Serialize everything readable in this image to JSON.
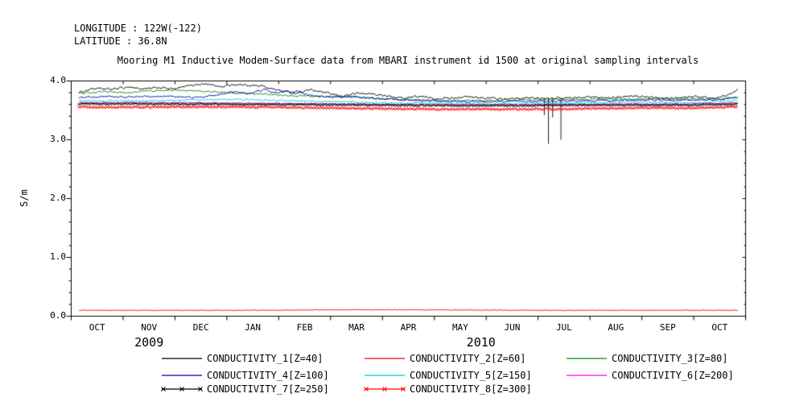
{
  "header": {
    "longitude": "LONGITUDE : 122W(-122)",
    "latitude": "LATITUDE : 36.8N"
  },
  "chart_data": {
    "type": "line",
    "title": "Mooring M1 Inductive Modem-Surface data from MBARI instrument id 1500 at original sampling intervals",
    "ylabel": "S/m",
    "ylim": [
      0.0,
      4.0
    ],
    "y_ticks": [
      0.0,
      1.0,
      2.0,
      3.0,
      4.0
    ],
    "y_minor_step": 0.2,
    "x_months": [
      "OCT",
      "NOV",
      "DEC",
      "JAN",
      "FEB",
      "MAR",
      "APR",
      "MAY",
      "JUN",
      "JUL",
      "AUG",
      "SEP",
      "OCT"
    ],
    "x_range_months": [
      0,
      13
    ],
    "year_labels": [
      {
        "text": "2009",
        "month_pos": 1.5
      },
      {
        "text": "2010",
        "month_pos": 7.9
      }
    ],
    "grid": false,
    "legend_position": "bottom",
    "units": "S/m",
    "series": [
      {
        "name": "CONDUCTIVITY_1",
        "label": "CONDUCTIVITY_1[Z=40]",
        "z": 40,
        "color": "#000000",
        "marker": "none",
        "noise": 0.022,
        "points": [
          [
            0.15,
            3.8
          ],
          [
            0.4,
            3.87
          ],
          [
            0.8,
            3.86
          ],
          [
            1.1,
            3.9
          ],
          [
            1.4,
            3.86
          ],
          [
            1.7,
            3.89
          ],
          [
            2.0,
            3.86
          ],
          [
            2.3,
            3.93
          ],
          [
            2.6,
            3.95
          ],
          [
            2.9,
            3.9
          ],
          [
            3.1,
            3.94
          ],
          [
            3.4,
            3.93
          ],
          [
            3.7,
            3.91
          ],
          [
            4.0,
            3.84
          ],
          [
            4.3,
            3.79
          ],
          [
            4.6,
            3.85
          ],
          [
            4.9,
            3.8
          ],
          [
            5.2,
            3.74
          ],
          [
            5.5,
            3.79
          ],
          [
            5.8,
            3.78
          ],
          [
            6.1,
            3.74
          ],
          [
            6.4,
            3.71
          ],
          [
            6.7,
            3.74
          ],
          [
            7.0,
            3.7
          ],
          [
            7.3,
            3.71
          ],
          [
            7.6,
            3.73
          ],
          [
            8.0,
            3.71
          ],
          [
            8.4,
            3.69
          ],
          [
            8.8,
            3.71
          ],
          [
            9.2,
            3.71
          ],
          [
            9.6,
            3.71
          ],
          [
            10.0,
            3.73
          ],
          [
            10.4,
            3.71
          ],
          [
            10.8,
            3.74
          ],
          [
            11.2,
            3.73
          ],
          [
            11.6,
            3.71
          ],
          [
            12.0,
            3.74
          ],
          [
            12.4,
            3.71
          ],
          [
            12.6,
            3.74
          ],
          [
            12.85,
            3.86
          ]
        ],
        "spikes": [
          [
            9.12,
            3.42
          ],
          [
            9.2,
            2.93
          ],
          [
            9.28,
            3.38
          ],
          [
            9.44,
            3.0
          ]
        ]
      },
      {
        "name": "CONDUCTIVITY_2",
        "label": "CONDUCTIVITY_2[Z=60]",
        "z": 60,
        "color": "#ff0000",
        "marker": "none",
        "noise": 0.006,
        "points": [
          [
            0.15,
            0.1
          ],
          [
            3.0,
            0.1
          ],
          [
            6.0,
            0.11
          ],
          [
            9.0,
            0.1
          ],
          [
            12.85,
            0.1
          ]
        ]
      },
      {
        "name": "CONDUCTIVITY_3",
        "label": "CONDUCTIVITY_3[Z=80]",
        "z": 80,
        "color": "#009000",
        "marker": "none",
        "noise": 0.018,
        "points": [
          [
            0.15,
            3.79
          ],
          [
            0.6,
            3.82
          ],
          [
            1.0,
            3.8
          ],
          [
            1.5,
            3.83
          ],
          [
            2.0,
            3.84
          ],
          [
            2.5,
            3.83
          ],
          [
            3.0,
            3.8
          ],
          [
            3.5,
            3.78
          ],
          [
            4.0,
            3.76
          ],
          [
            4.5,
            3.74
          ],
          [
            5.0,
            3.73
          ],
          [
            5.5,
            3.72
          ],
          [
            6.0,
            3.7
          ],
          [
            6.5,
            3.68
          ],
          [
            7.0,
            3.67
          ],
          [
            7.5,
            3.67
          ],
          [
            8.0,
            3.67
          ],
          [
            8.5,
            3.67
          ],
          [
            9.0,
            3.68
          ],
          [
            9.5,
            3.68
          ],
          [
            10.0,
            3.69
          ],
          [
            10.5,
            3.69
          ],
          [
            11.0,
            3.7
          ],
          [
            11.5,
            3.69
          ],
          [
            12.0,
            3.7
          ],
          [
            12.5,
            3.69
          ],
          [
            12.85,
            3.72
          ]
        ]
      },
      {
        "name": "CONDUCTIVITY_4",
        "label": "CONDUCTIVITY_4[Z=100]",
        "z": 100,
        "color": "#0000cc",
        "marker": "none",
        "noise": 0.02,
        "points": [
          [
            0.15,
            3.72
          ],
          [
            0.6,
            3.73
          ],
          [
            1.2,
            3.73
          ],
          [
            1.8,
            3.74
          ],
          [
            2.4,
            3.72
          ],
          [
            2.8,
            3.76
          ],
          [
            3.1,
            3.82
          ],
          [
            3.4,
            3.78
          ],
          [
            3.7,
            3.85
          ],
          [
            4.0,
            3.8
          ],
          [
            4.3,
            3.83
          ],
          [
            4.6,
            3.76
          ],
          [
            5.0,
            3.72
          ],
          [
            5.4,
            3.74
          ],
          [
            5.8,
            3.71
          ],
          [
            6.2,
            3.69
          ],
          [
            6.6,
            3.67
          ],
          [
            7.0,
            3.66
          ],
          [
            7.5,
            3.65
          ],
          [
            8.0,
            3.65
          ],
          [
            8.5,
            3.65
          ],
          [
            9.0,
            3.65
          ],
          [
            9.5,
            3.66
          ],
          [
            10.0,
            3.66
          ],
          [
            10.5,
            3.67
          ],
          [
            11.0,
            3.68
          ],
          [
            11.5,
            3.67
          ],
          [
            12.0,
            3.68
          ],
          [
            12.5,
            3.68
          ],
          [
            12.85,
            3.73
          ]
        ]
      },
      {
        "name": "CONDUCTIVITY_5",
        "label": "CONDUCTIVITY_5[Z=150]",
        "z": 150,
        "color": "#00cfcf",
        "marker": "none",
        "noise": 0.016,
        "points": [
          [
            0.15,
            3.67
          ],
          [
            1.0,
            3.66
          ],
          [
            2.0,
            3.67
          ],
          [
            3.0,
            3.69
          ],
          [
            4.0,
            3.67
          ],
          [
            5.0,
            3.65
          ],
          [
            6.0,
            3.63
          ],
          [
            7.0,
            3.62
          ],
          [
            8.0,
            3.61
          ],
          [
            9.0,
            3.62
          ],
          [
            10.0,
            3.63
          ],
          [
            11.0,
            3.64
          ],
          [
            12.0,
            3.63
          ],
          [
            12.85,
            3.67
          ]
        ]
      },
      {
        "name": "CONDUCTIVITY_6",
        "label": "CONDUCTIVITY_6[Z=200]",
        "z": 200,
        "color": "#ff00ff",
        "marker": "none",
        "noise": 0.012,
        "points": [
          [
            0.15,
            3.63
          ],
          [
            2.0,
            3.63
          ],
          [
            4.0,
            3.62
          ],
          [
            6.0,
            3.6
          ],
          [
            8.0,
            3.59
          ],
          [
            10.0,
            3.6
          ],
          [
            12.0,
            3.61
          ],
          [
            12.85,
            3.63
          ]
        ]
      },
      {
        "name": "CONDUCTIVITY_7",
        "label": "CONDUCTIVITY_7[Z=250]",
        "z": 250,
        "color": "#000000",
        "marker": "x",
        "noise": 0.01,
        "points": [
          [
            0.15,
            3.61
          ],
          [
            2.0,
            3.61
          ],
          [
            4.0,
            3.6
          ],
          [
            6.0,
            3.59
          ],
          [
            8.0,
            3.58
          ],
          [
            10.0,
            3.59
          ],
          [
            12.0,
            3.59
          ],
          [
            12.85,
            3.61
          ]
        ]
      },
      {
        "name": "CONDUCTIVITY_8",
        "label": "CONDUCTIVITY_8[Z=300]",
        "z": 300,
        "color": "#ff0000",
        "marker": "x",
        "noise": 0.012,
        "points": [
          [
            0.15,
            3.56
          ],
          [
            1.0,
            3.55
          ],
          [
            2.0,
            3.56
          ],
          [
            3.0,
            3.56
          ],
          [
            4.0,
            3.55
          ],
          [
            5.0,
            3.54
          ],
          [
            6.0,
            3.53
          ],
          [
            7.0,
            3.52
          ],
          [
            8.0,
            3.52
          ],
          [
            9.0,
            3.52
          ],
          [
            10.0,
            3.53
          ],
          [
            11.0,
            3.54
          ],
          [
            12.0,
            3.54
          ],
          [
            12.85,
            3.56
          ]
        ]
      }
    ]
  }
}
